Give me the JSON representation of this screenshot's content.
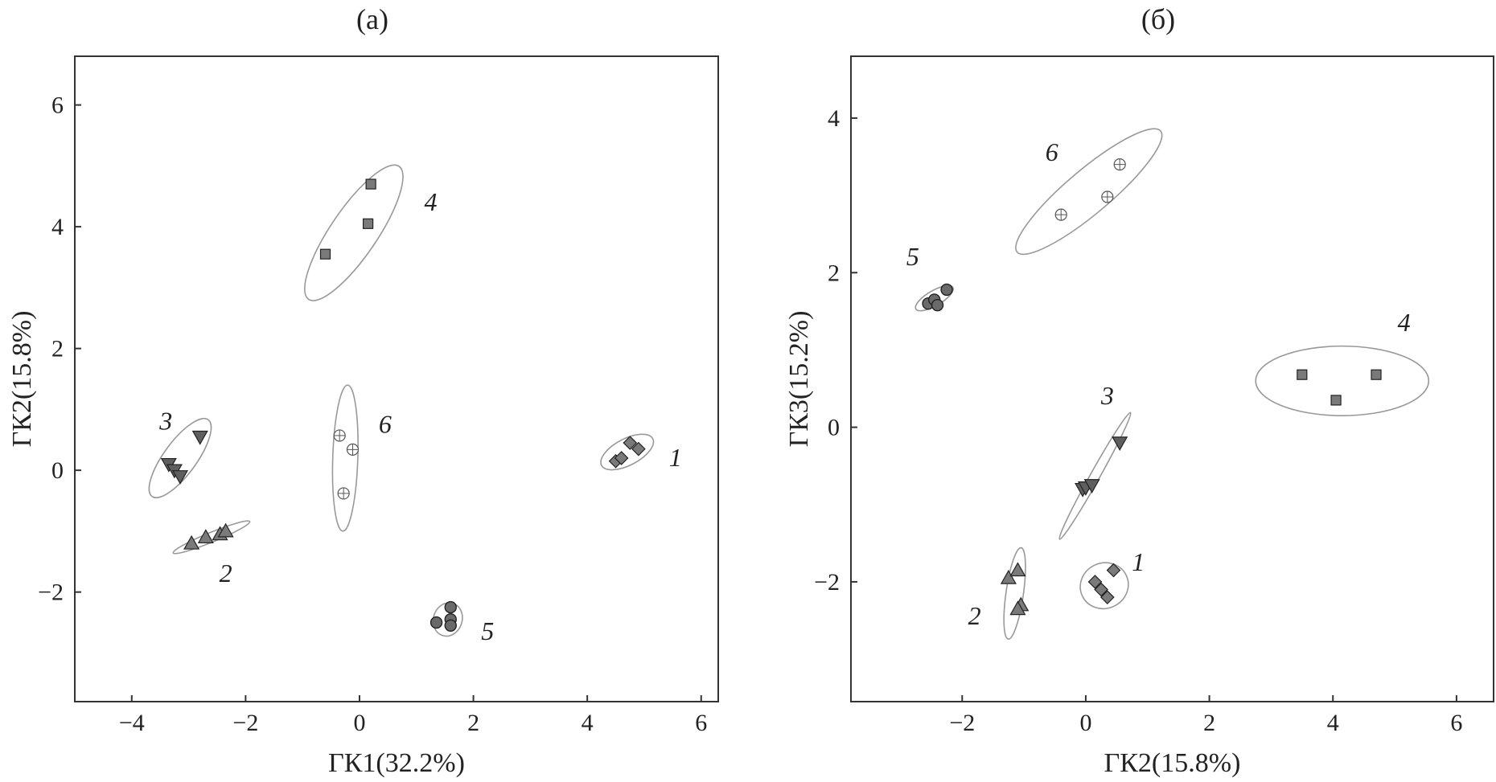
{
  "chart_data": [
    {
      "type": "scatter",
      "title": "(а)",
      "xlabel": "ГК1(32.2%)",
      "ylabel": "ГК2(15.8%)",
      "xlim": [
        -5,
        6.3
      ],
      "ylim": [
        -3.8,
        6.8
      ],
      "xticks": [
        -4,
        -2,
        0,
        2,
        4,
        6
      ],
      "yticks": [
        -2,
        0,
        2,
        4,
        6
      ],
      "xtick_labels": [
        "−4",
        "−2",
        "0",
        "2",
        "4",
        "6"
      ],
      "ytick_labels": [
        "−2",
        "0",
        "2",
        "4",
        "6"
      ],
      "grid": false,
      "groups": [
        {
          "label": "1",
          "marker": "diamond",
          "color": "#7a7a7a",
          "points": [
            [
              4.5,
              0.15
            ],
            [
              4.6,
              0.2
            ],
            [
              4.75,
              0.45
            ],
            [
              4.9,
              0.35
            ]
          ],
          "ellipse": {
            "cx": 4.7,
            "cy": 0.3,
            "rx": 0.5,
            "ry": 0.22,
            "angle_deg": 26
          },
          "label_pos": [
            5.55,
            0.2
          ]
        },
        {
          "label": "2",
          "marker": "triangle-up",
          "color": "#7a7a7a",
          "points": [
            [
              -2.95,
              -1.2
            ],
            [
              -2.7,
              -1.1
            ],
            [
              -2.45,
              -1.05
            ],
            [
              -2.35,
              -1.0
            ]
          ],
          "ellipse": {
            "cx": -2.6,
            "cy": -1.1,
            "rx": 0.72,
            "ry": 0.08,
            "angle_deg": 21
          },
          "label_pos": [
            -2.35,
            -1.7
          ]
        },
        {
          "label": "3",
          "marker": "triangle-down",
          "color": "#5f5f5f",
          "points": [
            [
              -3.35,
              0.1
            ],
            [
              -3.25,
              0.0
            ],
            [
              -3.15,
              -0.1
            ],
            [
              -2.8,
              0.55
            ]
          ],
          "ellipse": {
            "cx": -3.15,
            "cy": 0.2,
            "rx": 0.8,
            "ry": 0.28,
            "angle_deg": 52
          },
          "label_pos": [
            -3.4,
            0.8
          ]
        },
        {
          "label": "4",
          "marker": "square",
          "color": "#7a7a7a",
          "points": [
            [
              0.2,
              4.7
            ],
            [
              0.15,
              4.05
            ],
            [
              -0.6,
              3.55
            ]
          ],
          "ellipse": {
            "cx": -0.1,
            "cy": 3.9,
            "rx": 1.35,
            "ry": 0.4,
            "angle_deg": 54
          },
          "label_pos": [
            1.25,
            4.4
          ]
        },
        {
          "label": "5",
          "marker": "circle",
          "color": "#6a6a6a",
          "points": [
            [
              1.35,
              -2.5
            ],
            [
              1.6,
              -2.25
            ],
            [
              1.6,
              -2.45
            ],
            [
              1.6,
              -2.55
            ]
          ],
          "ellipse": {
            "cx": 1.55,
            "cy": -2.45,
            "rx": 0.28,
            "ry": 0.25,
            "angle_deg": 70
          },
          "label_pos": [
            2.25,
            -2.65
          ]
        },
        {
          "label": "6",
          "marker": "circle-plus",
          "color": "#ffffff",
          "points": [
            [
              -0.35,
              0.57
            ],
            [
              -0.12,
              0.34
            ],
            [
              -0.28,
              -0.38
            ]
          ],
          "ellipse": {
            "cx": -0.25,
            "cy": 0.2,
            "rx": 1.2,
            "ry": 0.22,
            "angle_deg": 88
          },
          "label_pos": [
            0.45,
            0.75
          ]
        }
      ]
    },
    {
      "type": "scatter",
      "title": "(б)",
      "xlabel": "ГК2(15.8%)",
      "ylabel": "ГК3(15.2%)",
      "xlim": [
        -3.8,
        6.6
      ],
      "ylim": [
        -3.55,
        4.8
      ],
      "xticks": [
        -2,
        0,
        2,
        4,
        6
      ],
      "yticks": [
        -2,
        0,
        2,
        4
      ],
      "xtick_labels": [
        "−2",
        "0",
        "2",
        "4",
        "6"
      ],
      "ytick_labels": [
        "−2",
        "0",
        "2",
        "4"
      ],
      "grid": false,
      "groups": [
        {
          "label": "1",
          "marker": "diamond",
          "color": "#7a7a7a",
          "points": [
            [
              0.15,
              -2.0
            ],
            [
              0.25,
              -2.1
            ],
            [
              0.35,
              -2.2
            ],
            [
              0.45,
              -1.85
            ]
          ],
          "ellipse": {
            "cx": 0.3,
            "cy": -2.05,
            "rx": 0.38,
            "ry": 0.3,
            "angle_deg": 20
          },
          "label_pos": [
            0.85,
            -1.75
          ]
        },
        {
          "label": "2",
          "marker": "triangle-up",
          "color": "#7a7a7a",
          "points": [
            [
              -1.25,
              -1.95
            ],
            [
              -1.1,
              -1.85
            ],
            [
              -1.05,
              -2.3
            ],
            [
              -1.1,
              -2.35
            ]
          ],
          "ellipse": {
            "cx": -1.15,
            "cy": -2.15,
            "rx": 0.6,
            "ry": 0.14,
            "angle_deg": 80
          },
          "label_pos": [
            -1.8,
            -2.45
          ]
        },
        {
          "label": "3",
          "marker": "triangle-down",
          "color": "#5f5f5f",
          "points": [
            [
              -0.05,
              -0.8
            ],
            [
              0.0,
              -0.78
            ],
            [
              0.1,
              -0.75
            ],
            [
              0.55,
              -0.2
            ]
          ],
          "ellipse": {
            "cx": 0.15,
            "cy": -0.63,
            "rx": 1.0,
            "ry": 0.07,
            "angle_deg": 55
          },
          "label_pos": [
            0.35,
            0.4
          ]
        },
        {
          "label": "4",
          "marker": "square",
          "color": "#7a7a7a",
          "points": [
            [
              3.5,
              0.68
            ],
            [
              4.05,
              0.35
            ],
            [
              4.7,
              0.68
            ]
          ],
          "ellipse": {
            "cx": 4.15,
            "cy": 0.6,
            "rx": 1.4,
            "ry": 0.45,
            "angle_deg": 0
          },
          "label_pos": [
            5.15,
            1.35
          ]
        },
        {
          "label": "5",
          "marker": "circle",
          "color": "#6a6a6a",
          "points": [
            [
              -2.55,
              1.6
            ],
            [
              -2.45,
              1.65
            ],
            [
              -2.4,
              1.58
            ],
            [
              -2.25,
              1.78
            ]
          ],
          "ellipse": {
            "cx": -2.45,
            "cy": 1.67,
            "rx": 0.33,
            "ry": 0.1,
            "angle_deg": 25
          },
          "label_pos": [
            -2.8,
            2.2
          ]
        },
        {
          "label": "6",
          "marker": "circle-plus",
          "color": "#ffffff",
          "points": [
            [
              -0.4,
              2.75
            ],
            [
              0.35,
              2.98
            ],
            [
              0.55,
              3.4
            ]
          ],
          "ellipse": {
            "cx": 0.05,
            "cy": 3.05,
            "rx": 1.4,
            "ry": 0.3,
            "angle_deg": 34
          },
          "label_pos": [
            -0.55,
            3.55
          ]
        }
      ]
    }
  ],
  "icons": {
    "marker_stroke": "#222222",
    "ellipse_stroke": "#999999"
  }
}
